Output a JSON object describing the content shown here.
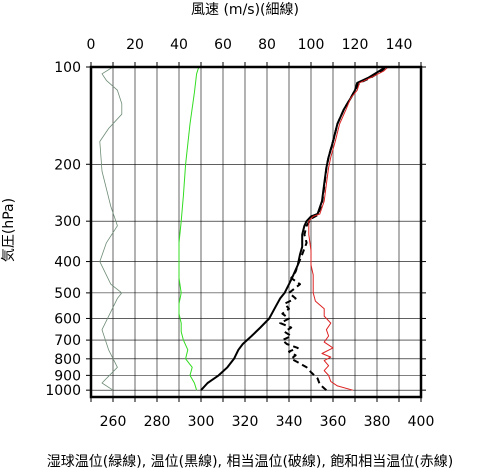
{
  "chart_data": {
    "type": "line",
    "top_axis_label": "風速 (m/s)(細線)",
    "left_axis_label": "気圧(hPa)",
    "bottom_axis_label": "湿球温位(緑線), 温位(黒線), 相当温位(破線), 飽和相当温位(赤線)",
    "y_scale": "log",
    "y_reversed": true,
    "ylim": [
      1050,
      100
    ],
    "yticks": [
      100,
      200,
      300,
      400,
      500,
      600,
      700,
      800,
      900,
      1000
    ],
    "xlim_bottom": [
      250,
      400
    ],
    "xticks_bottom": [
      260,
      280,
      300,
      320,
      340,
      360,
      380,
      400
    ],
    "xlim_top": [
      0,
      150
    ],
    "xticks_top": [
      0,
      20,
      40,
      60,
      80,
      100,
      120,
      140
    ],
    "grid": true,
    "series": [
      {
        "name": "風速",
        "axis": "top",
        "color": "#6e8c76",
        "style": "thin",
        "points": [
          [
            10,
            1000
          ],
          [
            5,
            950
          ],
          [
            12,
            850
          ],
          [
            8,
            750
          ],
          [
            5,
            650
          ],
          [
            12,
            520
          ],
          [
            14,
            500
          ],
          [
            9,
            470
          ],
          [
            4,
            400
          ],
          [
            7,
            350
          ],
          [
            12,
            310
          ],
          [
            9,
            270
          ],
          [
            5,
            210
          ],
          [
            4,
            170
          ],
          [
            8,
            155
          ],
          [
            14,
            140
          ],
          [
            14,
            130
          ],
          [
            12,
            118
          ],
          [
            7,
            110
          ],
          [
            5,
            105
          ],
          [
            10,
            100
          ]
        ]
      },
      {
        "name": "湿球温位",
        "axis": "bottom",
        "color": "#33dd22",
        "style": "solid",
        "points": [
          [
            298,
            1000
          ],
          [
            297,
            950
          ],
          [
            295,
            900
          ],
          [
            296,
            850
          ],
          [
            293,
            800
          ],
          [
            294,
            750
          ],
          [
            292,
            700
          ],
          [
            291,
            660
          ],
          [
            291,
            620
          ],
          [
            290,
            580
          ],
          [
            290,
            540
          ],
          [
            291,
            500
          ],
          [
            290,
            450
          ],
          [
            290,
            400
          ],
          [
            290,
            350
          ],
          [
            291,
            300
          ],
          [
            292,
            250
          ],
          [
            293,
            200
          ],
          [
            295,
            150
          ],
          [
            297,
            120
          ],
          [
            298,
            105
          ],
          [
            299,
            100
          ]
        ]
      },
      {
        "name": "温位",
        "axis": "bottom",
        "color": "#000000",
        "style": "thick",
        "points": [
          [
            300,
            1000
          ],
          [
            303,
            950
          ],
          [
            308,
            900
          ],
          [
            312,
            850
          ],
          [
            315,
            800
          ],
          [
            317,
            750
          ],
          [
            319,
            720
          ],
          [
            323,
            680
          ],
          [
            327,
            640
          ],
          [
            331,
            600
          ],
          [
            334,
            550
          ],
          [
            336,
            520
          ],
          [
            338,
            500
          ],
          [
            340,
            470
          ],
          [
            342,
            440
          ],
          [
            344,
            410
          ],
          [
            345,
            380
          ],
          [
            346,
            360
          ],
          [
            346,
            330
          ],
          [
            347,
            310
          ],
          [
            348,
            300
          ],
          [
            350,
            290
          ],
          [
            353,
            285
          ],
          [
            355,
            260
          ],
          [
            356,
            230
          ],
          [
            357,
            205
          ],
          [
            358,
            190
          ],
          [
            360,
            170
          ],
          [
            362,
            150
          ],
          [
            365,
            135
          ],
          [
            368,
            125
          ],
          [
            370,
            118
          ],
          [
            371,
            112
          ],
          [
            376,
            108
          ],
          [
            381,
            103
          ],
          [
            384,
            100
          ]
        ]
      },
      {
        "name": "相当温位",
        "axis": "bottom",
        "color": "#000000",
        "style": "dashed",
        "points": [
          [
            357,
            1000
          ],
          [
            354,
            960
          ],
          [
            353,
            920
          ],
          [
            350,
            880
          ],
          [
            348,
            850
          ],
          [
            344,
            820
          ],
          [
            341,
            800
          ],
          [
            343,
            780
          ],
          [
            340,
            760
          ],
          [
            344,
            740
          ],
          [
            339,
            720
          ],
          [
            337,
            700
          ],
          [
            341,
            680
          ],
          [
            338,
            660
          ],
          [
            341,
            640
          ],
          [
            336,
            620
          ],
          [
            340,
            600
          ],
          [
            337,
            580
          ],
          [
            340,
            560
          ],
          [
            338,
            540
          ],
          [
            343,
            520
          ],
          [
            340,
            500
          ],
          [
            345,
            470
          ],
          [
            341,
            450
          ],
          [
            343,
            430
          ],
          [
            344,
            410
          ],
          [
            346,
            380
          ],
          [
            348,
            350
          ],
          [
            347,
            330
          ],
          [
            348,
            310
          ],
          [
            350,
            295
          ],
          [
            353,
            287
          ],
          [
            355,
            265
          ],
          [
            356,
            235
          ],
          [
            357,
            205
          ],
          [
            358,
            190
          ],
          [
            360,
            170
          ],
          [
            362,
            150
          ],
          [
            365,
            135
          ],
          [
            368,
            125
          ],
          [
            370,
            118
          ],
          [
            372,
            112
          ],
          [
            377,
            108
          ],
          [
            382,
            103
          ],
          [
            384,
            100
          ]
        ]
      },
      {
        "name": "飽和相当温位",
        "axis": "bottom",
        "color": "#dd2222",
        "style": "solid",
        "points": [
          [
            369,
            1000
          ],
          [
            362,
            970
          ],
          [
            359,
            940
          ],
          [
            358,
            900
          ],
          [
            356,
            870
          ],
          [
            358,
            840
          ],
          [
            356,
            810
          ],
          [
            359,
            790
          ],
          [
            355,
            770
          ],
          [
            360,
            740
          ],
          [
            356,
            710
          ],
          [
            358,
            680
          ],
          [
            357,
            650
          ],
          [
            359,
            620
          ],
          [
            356,
            590
          ],
          [
            356,
            560
          ],
          [
            352,
            530
          ],
          [
            351,
            500
          ],
          [
            351,
            470
          ],
          [
            351,
            440
          ],
          [
            350,
            410
          ],
          [
            350,
            370
          ],
          [
            349,
            330
          ],
          [
            349,
            300
          ],
          [
            351,
            290
          ],
          [
            354,
            285
          ],
          [
            356,
            260
          ],
          [
            357,
            230
          ],
          [
            358,
            205
          ],
          [
            359,
            190
          ],
          [
            361,
            170
          ],
          [
            363,
            150
          ],
          [
            366,
            135
          ],
          [
            368,
            125
          ],
          [
            371,
            118
          ],
          [
            372,
            112
          ],
          [
            377,
            108
          ],
          [
            383,
            103
          ],
          [
            385,
            100
          ]
        ]
      }
    ]
  }
}
